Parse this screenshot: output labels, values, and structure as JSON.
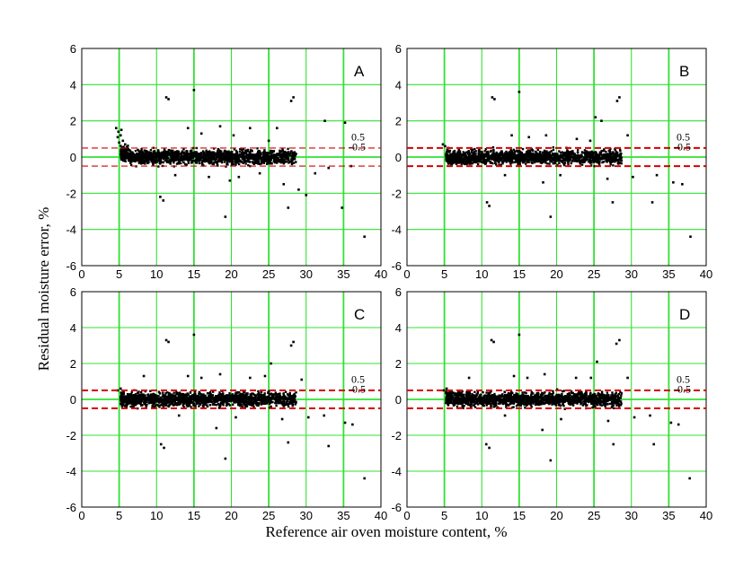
{
  "chart_data": {
    "type": "scatter",
    "xlabel": "Reference air oven moisture content, %",
    "ylabel": "Residual moisture error, %",
    "xlim": [
      0,
      40
    ],
    "ylim": [
      -6,
      6
    ],
    "xticks": [
      "0",
      "5",
      "10",
      "15",
      "20",
      "25",
      "30",
      "35",
      "40"
    ],
    "yticks": [
      "6",
      "4",
      "2",
      "0",
      "-2",
      "-4",
      "-6"
    ],
    "grid": true,
    "grid_color": "#33e033",
    "point_color": "#000000",
    "reference_line_color": "#d40000",
    "reference_lines": [
      0.5,
      -0.5
    ],
    "reference_labels": [
      "0.5",
      "-0.5"
    ],
    "panels": [
      {
        "label": "A",
        "series": [
          {
            "name": "",
            "points": [
              [
                4.6,
                1.6
              ],
              [
                4.9,
                1.4
              ],
              [
                5.2,
                1.2
              ],
              [
                5.5,
                0.9
              ],
              [
                5.8,
                0.7
              ],
              [
                6.1,
                0.5
              ],
              [
                4.8,
                1.1
              ],
              [
                5.3,
                1.5
              ],
              [
                5.0,
                0.8
              ],
              [
                11.3,
                3.3
              ],
              [
                11.6,
                3.2
              ],
              [
                15.0,
                3.7
              ],
              [
                28.0,
                3.1
              ],
              [
                28.3,
                3.3
              ],
              [
                32.5,
                2.0
              ],
              [
                35.2,
                1.9
              ],
              [
                10.5,
                -2.2
              ],
              [
                10.9,
                -2.4
              ],
              [
                19.2,
                -3.3
              ],
              [
                29.0,
                -1.8
              ],
              [
                30.0,
                -2.1
              ],
              [
                27.6,
                -2.8
              ],
              [
                34.8,
                -2.8
              ],
              [
                37.8,
                -4.4
              ],
              [
                14.2,
                1.6
              ],
              [
                16.0,
                1.3
              ],
              [
                18.5,
                1.7
              ],
              [
                20.3,
                1.2
              ],
              [
                22.5,
                1.6
              ],
              [
                25.0,
                0.9
              ],
              [
                26.1,
                1.6
              ],
              [
                27.0,
                -1.5
              ],
              [
                23.8,
                -0.9
              ],
              [
                31.2,
                -0.9
              ],
              [
                33.0,
                -0.6
              ],
              [
                36.0,
                -0.5
              ],
              [
                21.0,
                -1.1
              ],
              [
                19.8,
                -1.3
              ],
              [
                12.5,
                -1.0
              ],
              [
                17.0,
                -1.1
              ]
            ]
          }
        ]
      },
      {
        "label": "B",
        "series": [
          {
            "name": "",
            "points": [
              [
                4.8,
                0.7
              ],
              [
                5.1,
                0.6
              ],
              [
                5.5,
                0.5
              ],
              [
                11.4,
                3.3
              ],
              [
                11.7,
                3.2
              ],
              [
                15.0,
                3.6
              ],
              [
                28.1,
                3.1
              ],
              [
                28.4,
                3.3
              ],
              [
                25.2,
                2.2
              ],
              [
                26.0,
                2.0
              ],
              [
                10.7,
                -2.5
              ],
              [
                11.0,
                -2.7
              ],
              [
                19.2,
                -3.3
              ],
              [
                27.5,
                -2.5
              ],
              [
                32.8,
                -2.5
              ],
              [
                37.9,
                -4.4
              ],
              [
                35.6,
                -1.4
              ],
              [
                36.8,
                -1.5
              ],
              [
                14.0,
                1.2
              ],
              [
                16.3,
                1.1
              ],
              [
                18.6,
                1.2
              ],
              [
                22.7,
                1.0
              ],
              [
                24.5,
                0.9
              ],
              [
                29.5,
                1.2
              ],
              [
                30.2,
                -1.1
              ],
              [
                33.4,
                -1.0
              ],
              [
                20.5,
                -1.0
              ],
              [
                18.2,
                -1.4
              ],
              [
                13.1,
                -1.0
              ],
              [
                26.8,
                -1.2
              ]
            ]
          }
        ]
      },
      {
        "label": "C",
        "series": [
          {
            "name": "",
            "points": [
              [
                4.8,
                0.5
              ],
              [
                5.2,
                0.6
              ],
              [
                5.6,
                0.4
              ],
              [
                11.3,
                3.3
              ],
              [
                11.6,
                3.2
              ],
              [
                15.0,
                3.6
              ],
              [
                28.0,
                3.0
              ],
              [
                28.3,
                3.2
              ],
              [
                25.3,
                2.0
              ],
              [
                10.6,
                -2.5
              ],
              [
                11.0,
                -2.7
              ],
              [
                19.2,
                -3.3
              ],
              [
                27.6,
                -2.4
              ],
              [
                33.0,
                -2.6
              ],
              [
                37.8,
                -4.4
              ],
              [
                35.2,
                -1.3
              ],
              [
                36.2,
                -1.4
              ],
              [
                14.2,
                1.3
              ],
              [
                16.0,
                1.2
              ],
              [
                18.5,
                1.4
              ],
              [
                22.5,
                1.2
              ],
              [
                24.5,
                1.3
              ],
              [
                29.4,
                1.1
              ],
              [
                30.3,
                -1.0
              ],
              [
                32.4,
                -0.9
              ],
              [
                20.6,
                -1.0
              ],
              [
                18.0,
                -1.6
              ],
              [
                13.0,
                -0.9
              ],
              [
                26.8,
                -1.1
              ],
              [
                8.3,
                1.3
              ]
            ]
          }
        ]
      },
      {
        "label": "D",
        "series": [
          {
            "name": "",
            "points": [
              [
                4.9,
                0.5
              ],
              [
                5.3,
                0.6
              ],
              [
                5.7,
                0.4
              ],
              [
                11.3,
                3.3
              ],
              [
                11.6,
                3.2
              ],
              [
                15.0,
                3.6
              ],
              [
                28.0,
                3.1
              ],
              [
                28.4,
                3.3
              ],
              [
                25.4,
                2.1
              ],
              [
                10.6,
                -2.5
              ],
              [
                11.0,
                -2.7
              ],
              [
                19.2,
                -3.4
              ],
              [
                27.6,
                -2.5
              ],
              [
                33.0,
                -2.5
              ],
              [
                37.8,
                -4.4
              ],
              [
                35.3,
                -1.3
              ],
              [
                36.3,
                -1.4
              ],
              [
                14.3,
                1.3
              ],
              [
                16.1,
                1.2
              ],
              [
                18.4,
                1.4
              ],
              [
                22.6,
                1.2
              ],
              [
                24.6,
                1.2
              ],
              [
                29.5,
                1.2
              ],
              [
                30.4,
                -1.0
              ],
              [
                32.5,
                -0.9
              ],
              [
                20.6,
                -1.1
              ],
              [
                18.1,
                -1.7
              ],
              [
                13.1,
                -0.9
              ],
              [
                26.9,
                -1.2
              ],
              [
                8.3,
                1.2
              ]
            ]
          }
        ]
      }
    ]
  }
}
